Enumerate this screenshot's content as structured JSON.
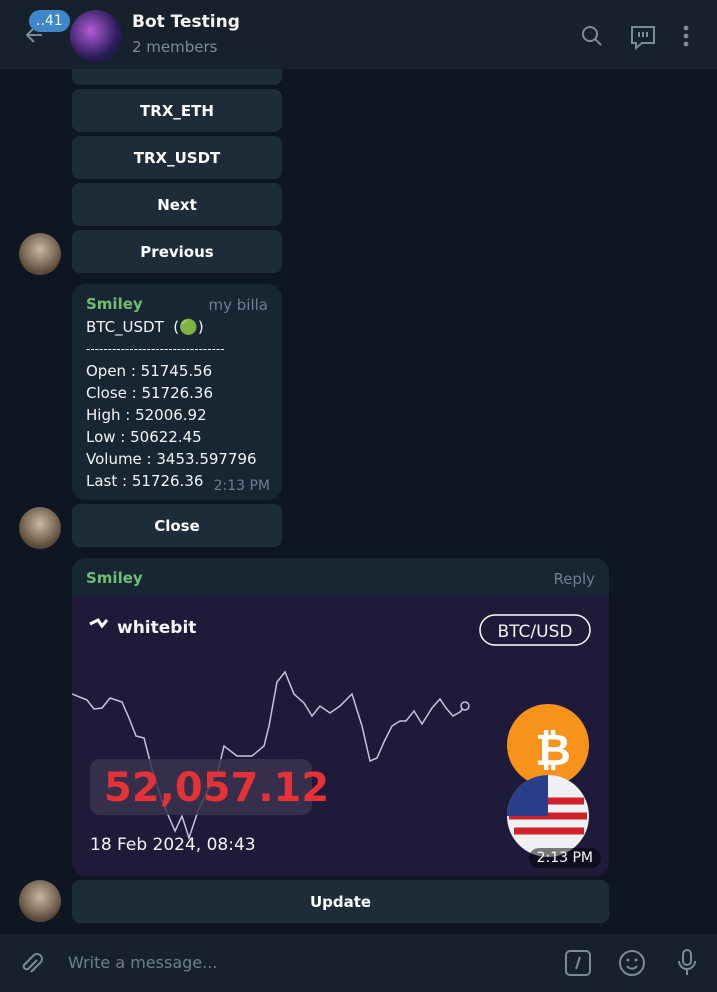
{
  "header": {
    "badge": "..41",
    "title": "Bot Testing",
    "subtitle": "2 members"
  },
  "keyboard_top": [
    "TRX_ETH",
    "TRX_USDT",
    "Next",
    "Previous"
  ],
  "message1": {
    "sender": "Smiley",
    "tag": "my billa",
    "lines": [
      "BTC_USDT  (🟢)",
      "--------------------------------",
      "Open : 51745.56",
      "Close : 51726.36",
      "High : 52006.92",
      "Low : 50622.45",
      "Volume : 3453.597796",
      "Last : 51726.36"
    ],
    "time": "2:13 PM"
  },
  "keyboard_close": "Close",
  "message2": {
    "sender": "Smiley",
    "action": "Reply",
    "card": {
      "brand": "whitebit",
      "pair": "BTC/USD",
      "price": "52,057.12",
      "date": "18 Feb 2024, 08:43"
    },
    "time": "2:13 PM"
  },
  "keyboard_update": "Update",
  "input": {
    "placeholder": "Write a message..."
  }
}
